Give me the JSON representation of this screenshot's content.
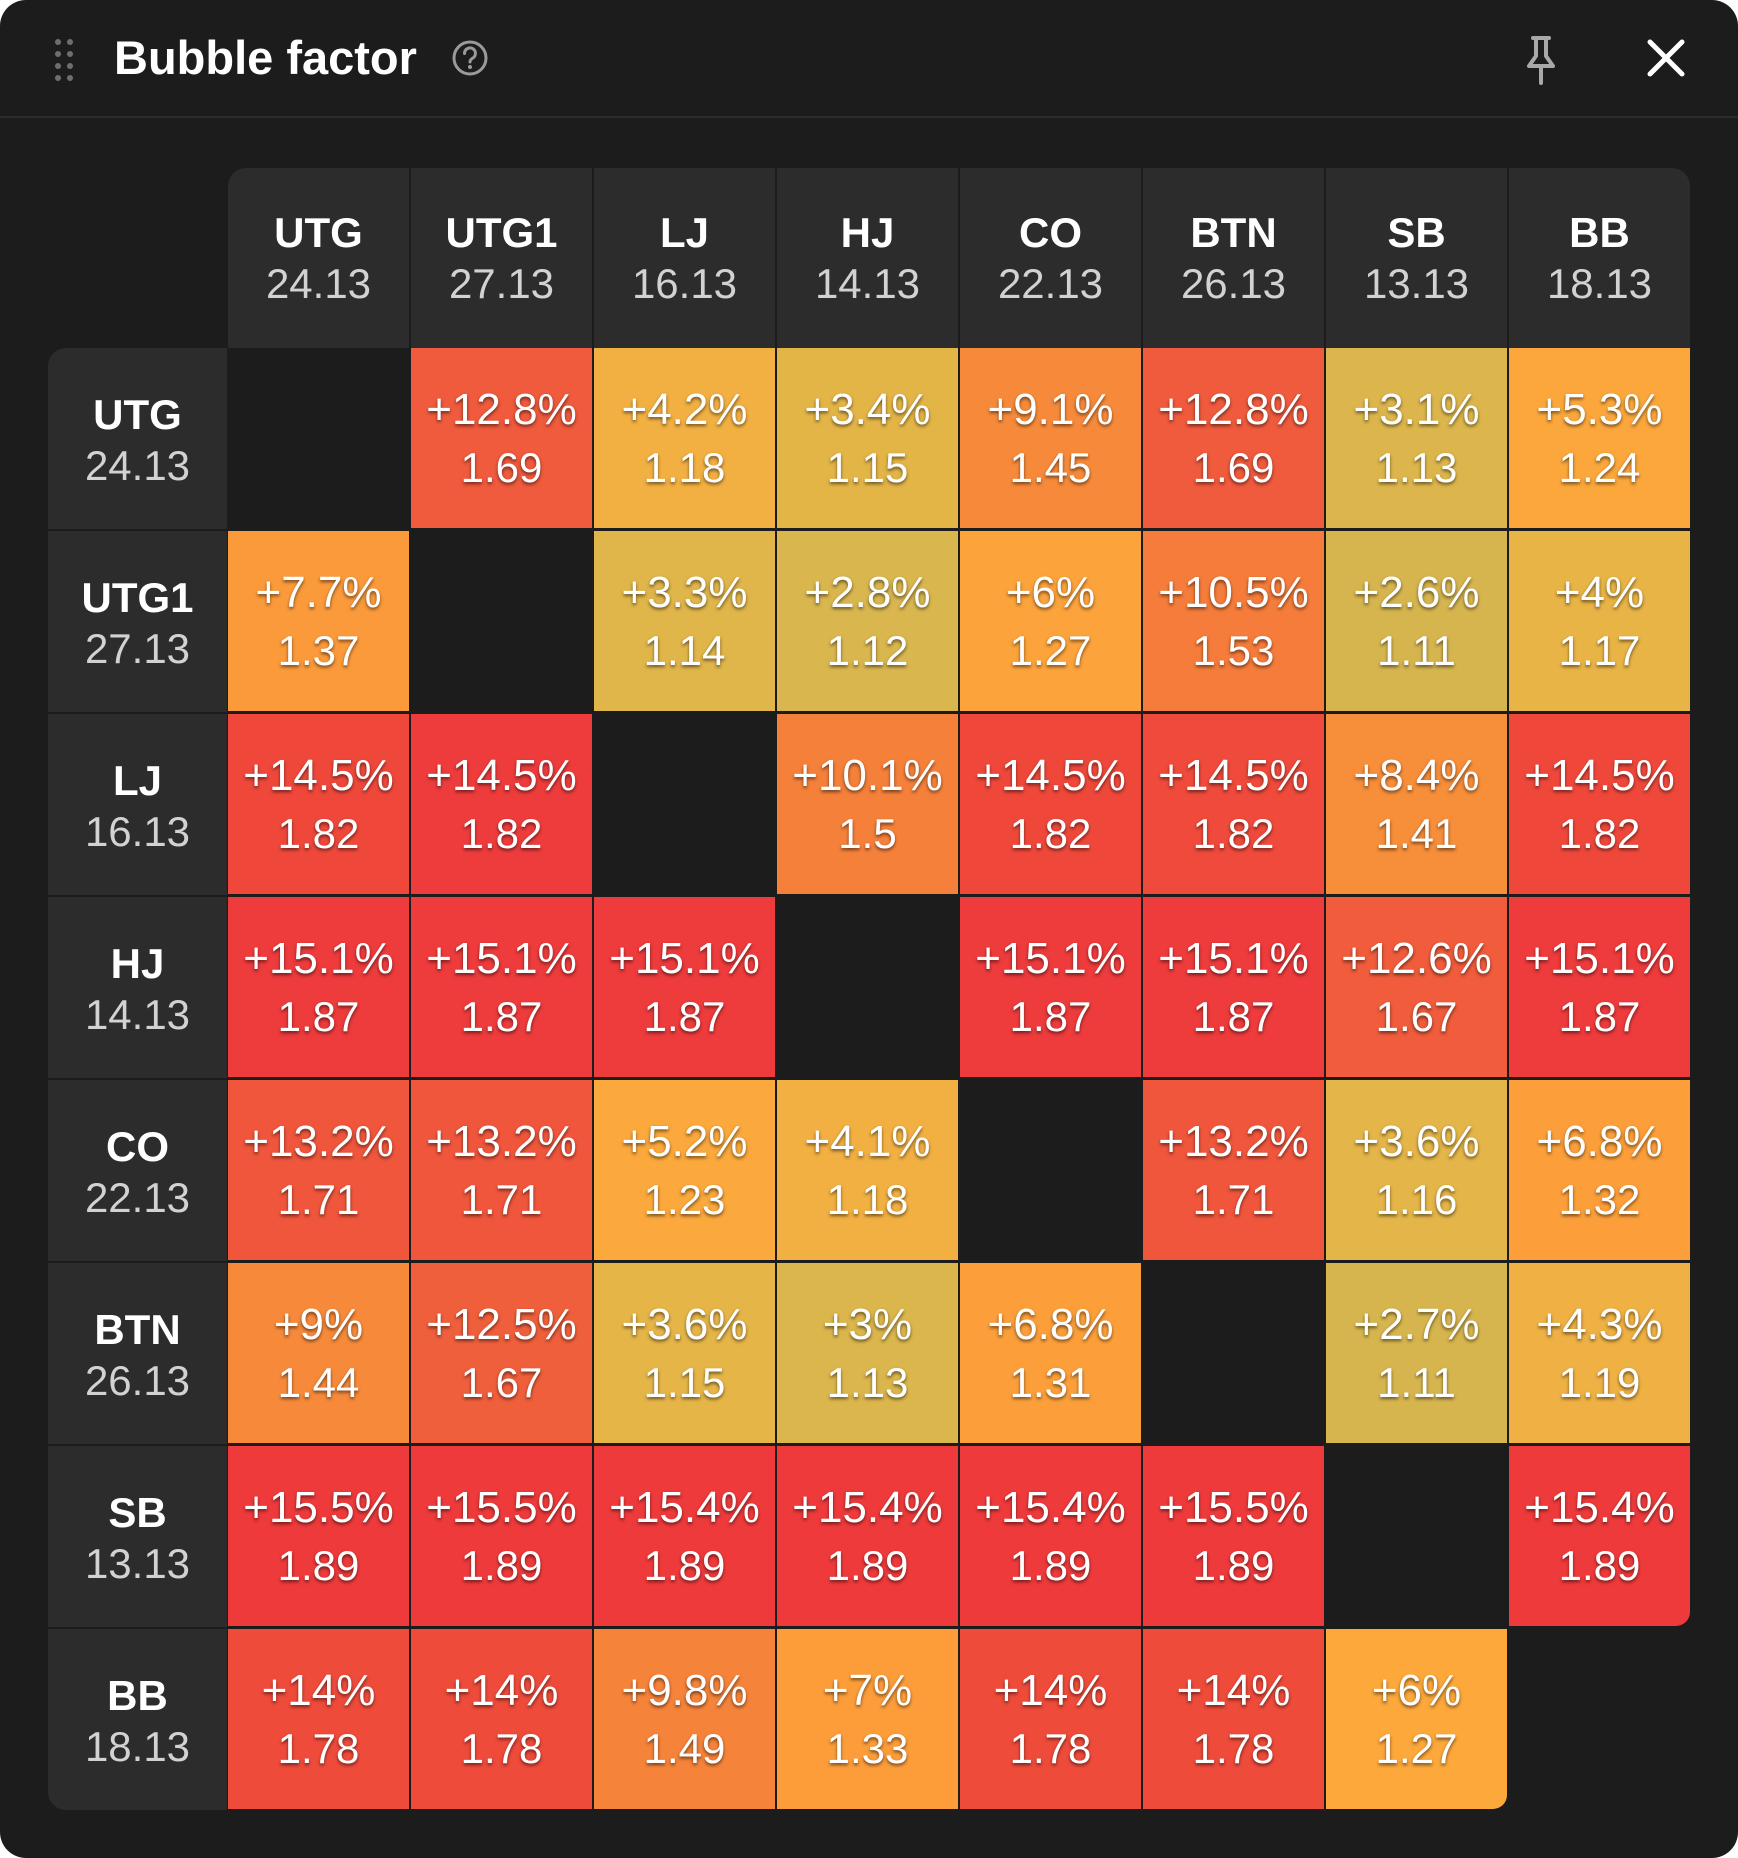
{
  "window": {
    "title": "Bubble factor",
    "icons": {
      "drag": "drag-handle-icon",
      "help": "help-circle-icon",
      "pin": "pin-icon",
      "close": "close-icon"
    }
  },
  "positions": [
    {
      "name": "UTG",
      "stack": "24.13"
    },
    {
      "name": "UTG1",
      "stack": "27.13"
    },
    {
      "name": "LJ",
      "stack": "16.13"
    },
    {
      "name": "HJ",
      "stack": "14.13"
    },
    {
      "name": "CO",
      "stack": "22.13"
    },
    {
      "name": "BTN",
      "stack": "26.13"
    },
    {
      "name": "SB",
      "stack": "13.13"
    },
    {
      "name": "BB",
      "stack": "18.13"
    }
  ],
  "colors": {
    "gold": "#d9b44a",
    "amber": "#f2b042",
    "orange": "#fba33c",
    "dark_orange": "#f6843a",
    "red_orange": "#ef5a3b",
    "red": "#ee3a3b",
    "background": "#1c1c1c",
    "header": "#2c2c2c"
  },
  "matrix": [
    [
      null,
      {
        "pct": "+12.8%",
        "val": "1.69",
        "color": "#f05a3d"
      },
      {
        "pct": "+4.2%",
        "val": "1.18",
        "color": "#f2b042"
      },
      {
        "pct": "+3.4%",
        "val": "1.15",
        "color": "#e3b547"
      },
      {
        "pct": "+9.1%",
        "val": "1.45",
        "color": "#f78a3a"
      },
      {
        "pct": "+12.8%",
        "val": "1.69",
        "color": "#f05a3d"
      },
      {
        "pct": "+3.1%",
        "val": "1.13",
        "color": "#dcb64c"
      },
      {
        "pct": "+5.3%",
        "val": "1.24",
        "color": "#fba73c"
      }
    ],
    [
      {
        "pct": "+7.7%",
        "val": "1.37",
        "color": "#fb9a3a"
      },
      null,
      {
        "pct": "+3.3%",
        "val": "1.14",
        "color": "#e0b54a"
      },
      {
        "pct": "+2.8%",
        "val": "1.12",
        "color": "#d9b64e"
      },
      {
        "pct": "+6%",
        "val": "1.27",
        "color": "#fca33b"
      },
      {
        "pct": "+10.5%",
        "val": "1.53",
        "color": "#f57c3a"
      },
      {
        "pct": "+2.6%",
        "val": "1.11",
        "color": "#d6b54f"
      },
      {
        "pct": "+4%",
        "val": "1.17",
        "color": "#e8b446"
      }
    ],
    [
      {
        "pct": "+14.5%",
        "val": "1.82",
        "color": "#ef483b"
      },
      {
        "pct": "+14.5%",
        "val": "1.82",
        "color": "#ee3c3c"
      },
      null,
      {
        "pct": "+10.1%",
        "val": "1.5",
        "color": "#f5803a"
      },
      {
        "pct": "+14.5%",
        "val": "1.82",
        "color": "#ef483b"
      },
      {
        "pct": "+14.5%",
        "val": "1.82",
        "color": "#ef4a3b"
      },
      {
        "pct": "+8.4%",
        "val": "1.41",
        "color": "#f78e3a"
      },
      {
        "pct": "+14.5%",
        "val": "1.82",
        "color": "#ef483b"
      }
    ],
    [
      {
        "pct": "+15.1%",
        "val": "1.87",
        "color": "#ee3b3c"
      },
      {
        "pct": "+15.1%",
        "val": "1.87",
        "color": "#ee3b3c"
      },
      {
        "pct": "+15.1%",
        "val": "1.87",
        "color": "#ee3b3c"
      },
      null,
      {
        "pct": "+15.1%",
        "val": "1.87",
        "color": "#ee3b3c"
      },
      {
        "pct": "+15.1%",
        "val": "1.87",
        "color": "#ee3b3c"
      },
      {
        "pct": "+12.6%",
        "val": "1.67",
        "color": "#f05c3c"
      },
      {
        "pct": "+15.1%",
        "val": "1.87",
        "color": "#ee3b3c"
      }
    ],
    [
      {
        "pct": "+13.2%",
        "val": "1.71",
        "color": "#f0563c"
      },
      {
        "pct": "+13.2%",
        "val": "1.71",
        "color": "#f0563c"
      },
      {
        "pct": "+5.2%",
        "val": "1.23",
        "color": "#fba83c"
      },
      {
        "pct": "+4.1%",
        "val": "1.18",
        "color": "#f2b042"
      },
      null,
      {
        "pct": "+13.2%",
        "val": "1.71",
        "color": "#f0563c"
      },
      {
        "pct": "+3.6%",
        "val": "1.16",
        "color": "#e4b548"
      },
      {
        "pct": "+6.8%",
        "val": "1.32",
        "color": "#fc9f3a"
      }
    ],
    [
      {
        "pct": "+9%",
        "val": "1.44",
        "color": "#f78a3a"
      },
      {
        "pct": "+12.5%",
        "val": "1.67",
        "color": "#f05f3c"
      },
      {
        "pct": "+3.6%",
        "val": "1.15",
        "color": "#e5b548"
      },
      {
        "pct": "+3%",
        "val": "1.13",
        "color": "#dbb64c"
      },
      {
        "pct": "+6.8%",
        "val": "1.31",
        "color": "#fc9f3a"
      },
      null,
      {
        "pct": "+2.7%",
        "val": "1.11",
        "color": "#d7b54e"
      },
      {
        "pct": "+4.3%",
        "val": "1.19",
        "color": "#efb144"
      }
    ],
    [
      {
        "pct": "+15.5%",
        "val": "1.89",
        "color": "#ee3a3b"
      },
      {
        "pct": "+15.5%",
        "val": "1.89",
        "color": "#ee3a3b"
      },
      {
        "pct": "+15.4%",
        "val": "1.89",
        "color": "#ee3a3b"
      },
      {
        "pct": "+15.4%",
        "val": "1.89",
        "color": "#ee3a3b"
      },
      {
        "pct": "+15.4%",
        "val": "1.89",
        "color": "#ee3a3b"
      },
      {
        "pct": "+15.5%",
        "val": "1.89",
        "color": "#ee3a3b"
      },
      null,
      {
        "pct": "+15.4%",
        "val": "1.89",
        "color": "#ee3a3b"
      }
    ],
    [
      {
        "pct": "+14%",
        "val": "1.78",
        "color": "#ef4b3b"
      },
      {
        "pct": "+14%",
        "val": "1.78",
        "color": "#ef4b3b"
      },
      {
        "pct": "+9.8%",
        "val": "1.49",
        "color": "#f6833a"
      },
      {
        "pct": "+7%",
        "val": "1.33",
        "color": "#fc9d3a"
      },
      {
        "pct": "+14%",
        "val": "1.78",
        "color": "#ef4b3b"
      },
      {
        "pct": "+14%",
        "val": "1.78",
        "color": "#ef4b3b"
      },
      {
        "pct": "+6%",
        "val": "1.27",
        "color": "#fca83b"
      },
      null
    ]
  ]
}
